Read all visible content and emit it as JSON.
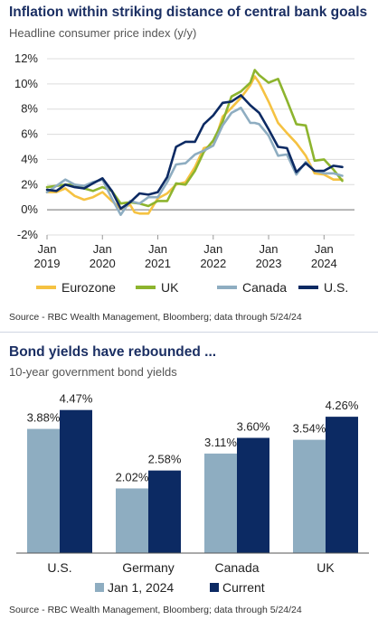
{
  "chart_data": [
    {
      "type": "line",
      "title": "Inflation within striking distance of central bank goals",
      "subtitle": "Headline consumer price index (y/y)",
      "source": "Source - RBC Wealth Management, Bloomberg; data through 5/24/24",
      "ylim": [
        -2,
        12
      ],
      "yticks": [
        "12%",
        "10%",
        "8%",
        "6%",
        "4%",
        "2%",
        "0%",
        "-2%"
      ],
      "ytick_values": [
        12,
        10,
        8,
        6,
        4,
        2,
        0,
        -2
      ],
      "xlim": [
        2019.0,
        2024.55
      ],
      "xticks": [
        {
          "value": 2019,
          "line1": "Jan",
          "line2": "2019"
        },
        {
          "value": 2020,
          "line1": "Jan",
          "line2": "2020"
        },
        {
          "value": 2021,
          "line1": "Jan",
          "line2": "2021"
        },
        {
          "value": 2022,
          "line1": "Jan",
          "line2": "2022"
        },
        {
          "value": 2023,
          "line1": "Jan",
          "line2": "2023"
        },
        {
          "value": 2024,
          "line1": "Jan",
          "line2": "2024"
        }
      ],
      "grid": true,
      "legend_placement": "bottom",
      "series": [
        {
          "name": "Eurozone",
          "color": "#f5c242",
          "x": [
            2019.0,
            2019.17,
            2019.33,
            2019.5,
            2019.67,
            2019.83,
            2020.0,
            2020.17,
            2020.33,
            2020.5,
            2020.58,
            2020.67,
            2020.83,
            2021.0,
            2021.17,
            2021.33,
            2021.5,
            2021.67,
            2021.83,
            2022.0,
            2022.17,
            2022.33,
            2022.5,
            2022.67,
            2022.75,
            2022.83,
            2023.0,
            2023.17,
            2023.33,
            2023.5,
            2023.67,
            2023.83,
            2024.0,
            2024.17,
            2024.33
          ],
          "y": [
            1.4,
            1.4,
            1.7,
            1.1,
            0.8,
            1.0,
            1.4,
            0.7,
            0.1,
            0.4,
            -0.2,
            -0.3,
            -0.3,
            0.9,
            1.3,
            2.0,
            2.2,
            3.4,
            4.9,
            5.1,
            7.4,
            8.1,
            8.9,
            9.9,
            10.6,
            10.1,
            8.6,
            6.9,
            6.1,
            5.3,
            4.3,
            2.9,
            2.8,
            2.4,
            2.4
          ]
        },
        {
          "name": "UK",
          "color": "#8db42e",
          "x": [
            2019.0,
            2019.17,
            2019.33,
            2019.5,
            2019.67,
            2019.83,
            2020.0,
            2020.17,
            2020.33,
            2020.5,
            2020.67,
            2020.83,
            2021.0,
            2021.17,
            2021.33,
            2021.5,
            2021.67,
            2021.83,
            2022.0,
            2022.17,
            2022.33,
            2022.5,
            2022.67,
            2022.75,
            2022.83,
            2023.0,
            2023.17,
            2023.33,
            2023.5,
            2023.67,
            2023.83,
            2024.0,
            2024.17,
            2024.33
          ],
          "y": [
            1.8,
            1.9,
            2.0,
            2.0,
            1.7,
            1.5,
            1.8,
            1.5,
            0.5,
            0.6,
            0.5,
            0.3,
            0.7,
            0.7,
            2.1,
            2.0,
            3.1,
            4.6,
            5.5,
            7.0,
            9.0,
            9.4,
            10.1,
            11.1,
            10.7,
            10.1,
            10.4,
            8.7,
            6.8,
            6.7,
            3.9,
            4.0,
            3.2,
            2.3
          ]
        },
        {
          "name": "Canada",
          "color": "#8eadc1",
          "x": [
            2019.0,
            2019.17,
            2019.33,
            2019.5,
            2019.67,
            2019.83,
            2020.0,
            2020.17,
            2020.33,
            2020.5,
            2020.67,
            2020.83,
            2021.0,
            2021.17,
            2021.33,
            2021.5,
            2021.67,
            2021.83,
            2022.0,
            2022.17,
            2022.33,
            2022.5,
            2022.67,
            2022.75,
            2022.83,
            2023.0,
            2023.17,
            2023.33,
            2023.5,
            2023.67,
            2023.83,
            2024.0,
            2024.17,
            2024.33
          ],
          "y": [
            1.4,
            1.9,
            2.4,
            2.0,
            1.9,
            2.2,
            2.4,
            0.9,
            -0.4,
            0.7,
            0.5,
            1.0,
            1.0,
            2.2,
            3.6,
            3.7,
            4.4,
            4.7,
            5.1,
            6.7,
            7.7,
            8.1,
            6.9,
            6.9,
            6.8,
            5.9,
            4.3,
            4.4,
            2.8,
            3.8,
            3.1,
            2.9,
            2.9,
            2.7
          ]
        },
        {
          "name": "U.S.",
          "color": "#0c2a63",
          "x": [
            2019.0,
            2019.17,
            2019.33,
            2019.5,
            2019.67,
            2019.83,
            2020.0,
            2020.17,
            2020.33,
            2020.5,
            2020.67,
            2020.83,
            2021.0,
            2021.17,
            2021.33,
            2021.5,
            2021.67,
            2021.83,
            2022.0,
            2022.17,
            2022.33,
            2022.5,
            2022.67,
            2022.83,
            2023.0,
            2023.17,
            2023.33,
            2023.5,
            2023.67,
            2023.83,
            2024.0,
            2024.17,
            2024.33
          ],
          "y": [
            1.6,
            1.5,
            2.0,
            1.8,
            1.7,
            2.1,
            2.5,
            1.5,
            0.1,
            0.6,
            1.3,
            1.2,
            1.4,
            2.6,
            5.0,
            5.4,
            5.4,
            6.8,
            7.5,
            8.5,
            8.6,
            9.1,
            8.3,
            7.7,
            6.4,
            5.0,
            4.9,
            3.0,
            3.7,
            3.1,
            3.1,
            3.5,
            3.4
          ]
        }
      ]
    },
    {
      "type": "bar",
      "title": "Bond yields have rebounded ...",
      "subtitle": "10-year government bond yields",
      "source": "Source - RBC Wealth Management, Bloomberg; data through 5/24/24",
      "categories": [
        "U.S.",
        "Germany",
        "Canada",
        "UK"
      ],
      "ylim": [
        0,
        4.8
      ],
      "grid": false,
      "legend_placement": "bottom",
      "series": [
        {
          "name": "Jan 1, 2024",
          "color": "#8eadc1",
          "values": [
            3.88,
            2.02,
            3.11,
            3.54
          ],
          "labels": [
            "3.88%",
            "2.02%",
            "3.11%",
            "3.54%"
          ]
        },
        {
          "name": "Current",
          "color": "#0c2a63",
          "values": [
            4.47,
            2.58,
            3.6,
            4.26
          ],
          "labels": [
            "4.47%",
            "2.58%",
            "3.60%",
            "4.26%"
          ]
        }
      ]
    }
  ]
}
